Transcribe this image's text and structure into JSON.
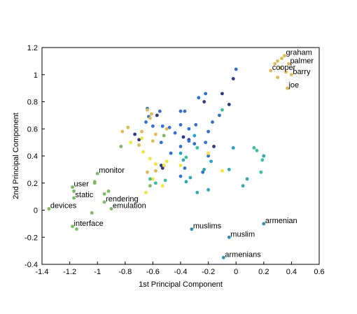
{
  "chart_data": {
    "type": "scatter",
    "title": "",
    "xlabel": "1st Principal Component",
    "ylabel": "2nd Principal Component",
    "xlim": [
      -1.4,
      0.6
    ],
    "ylim": [
      -0.4,
      1.2
    ],
    "xticks": [
      "-1.4",
      "-1.2",
      "-1",
      "-0.8",
      "-0.6",
      "-0.4",
      "-0.2",
      "0",
      "0.2",
      "0.4",
      "0.6"
    ],
    "yticks": [
      "-0.4",
      "-0.2",
      "0",
      "0.2",
      "0.4",
      "0.6",
      "0.8",
      "1",
      "1.2"
    ],
    "grid": false,
    "colors": {
      "green": "#7bba5e",
      "gold": "#e0ba4a",
      "yellow": "#f5e62a",
      "blue": "#2f6fd6",
      "navy": "#2d3a8c",
      "teal": "#29a8b6",
      "cyan": "#1ea4cf",
      "mint": "#35c0a0",
      "steel": "#2b8fb8"
    },
    "labeled_points": [
      {
        "label": "graham",
        "x": 0.35,
        "y": 1.14,
        "color": "gold"
      },
      {
        "label": "palmer",
        "x": 0.38,
        "y": 1.08,
        "color": "gold"
      },
      {
        "label": "cooper",
        "x": 0.25,
        "y": 1.03,
        "color": "gold"
      },
      {
        "label": "barry",
        "x": 0.4,
        "y": 1.0,
        "color": "gold"
      },
      {
        "label": "joe",
        "x": 0.37,
        "y": 0.9,
        "color": "gold"
      },
      {
        "label": "monitor",
        "x": -1.0,
        "y": 0.27,
        "color": "green"
      },
      {
        "label": "user",
        "x": -1.18,
        "y": 0.17,
        "color": "green"
      },
      {
        "label": "static",
        "x": -1.17,
        "y": 0.09,
        "color": "green"
      },
      {
        "label": "rendering",
        "x": -0.95,
        "y": 0.06,
        "color": "green"
      },
      {
        "label": "devices",
        "x": -1.35,
        "y": 0.01,
        "color": "green"
      },
      {
        "label": "emulation",
        "x": -0.9,
        "y": 0.01,
        "color": "green"
      },
      {
        "label": "interface",
        "x": -1.18,
        "y": -0.12,
        "color": "green"
      },
      {
        "label": "armenian",
        "x": 0.2,
        "y": -0.1,
        "color": "steel"
      },
      {
        "label": "muslims",
        "x": -0.32,
        "y": -0.14,
        "color": "steel"
      },
      {
        "label": "muslim",
        "x": -0.05,
        "y": -0.2,
        "color": "steel"
      },
      {
        "label": "armenians",
        "x": -0.09,
        "y": -0.35,
        "color": "steel"
      }
    ],
    "points": [
      {
        "x": 0.3,
        "y": 1.1,
        "c": "gold"
      },
      {
        "x": 0.33,
        "y": 1.12,
        "c": "gold"
      },
      {
        "x": 0.32,
        "y": 1.05,
        "c": "gold"
      },
      {
        "x": 0.28,
        "y": 1.08,
        "c": "gold"
      },
      {
        "x": 0.36,
        "y": 1.02,
        "c": "gold"
      },
      {
        "x": 0.3,
        "y": 0.98,
        "c": "gold"
      },
      {
        "x": -1.17,
        "y": 0.14,
        "c": "green"
      },
      {
        "x": -1.02,
        "y": 0.21,
        "c": "green"
      },
      {
        "x": -1.02,
        "y": 0.2,
        "c": "green"
      },
      {
        "x": -0.92,
        "y": 0.14,
        "c": "green"
      },
      {
        "x": -0.95,
        "y": 0.12,
        "c": "green"
      },
      {
        "x": -1.04,
        "y": -0.02,
        "c": "green"
      },
      {
        "x": -1.15,
        "y": -0.14,
        "c": "green"
      },
      {
        "x": -0.62,
        "y": 0.18,
        "c": "green"
      },
      {
        "x": -0.83,
        "y": 0.47,
        "c": "green"
      },
      {
        "x": -0.52,
        "y": 0.55,
        "c": "green"
      },
      {
        "x": -0.02,
        "y": 0.97,
        "c": "navy"
      },
      {
        "x": -0.05,
        "y": 0.78,
        "c": "navy"
      },
      {
        "x": -0.1,
        "y": 0.86,
        "c": "navy"
      },
      {
        "x": -0.23,
        "y": 0.8,
        "c": "navy"
      },
      {
        "x": -0.57,
        "y": 0.7,
        "c": "navy"
      },
      {
        "x": -0.73,
        "y": 0.56,
        "c": "navy"
      },
      {
        "x": -0.7,
        "y": 0.52,
        "c": "navy"
      },
      {
        "x": -0.38,
        "y": 0.54,
        "c": "navy"
      },
      {
        "x": -0.34,
        "y": 0.52,
        "c": "navy"
      },
      {
        "x": -0.54,
        "y": 0.33,
        "c": "navy"
      },
      {
        "x": -0.53,
        "y": 0.31,
        "c": "navy"
      },
      {
        "x": -0.16,
        "y": 0.47,
        "c": "navy"
      },
      {
        "x": 0.0,
        "y": 1.04,
        "c": "blue"
      },
      {
        "x": -0.22,
        "y": 0.86,
        "c": "blue"
      },
      {
        "x": -0.27,
        "y": 0.83,
        "c": "blue"
      },
      {
        "x": -0.37,
        "y": 0.73,
        "c": "blue"
      },
      {
        "x": -0.4,
        "y": 0.73,
        "c": "blue"
      },
      {
        "x": -0.64,
        "y": 0.75,
        "c": "blue"
      },
      {
        "x": -0.55,
        "y": 0.73,
        "c": "blue"
      },
      {
        "x": -0.63,
        "y": 0.69,
        "c": "blue"
      },
      {
        "x": -0.65,
        "y": 0.65,
        "c": "blue"
      },
      {
        "x": -0.48,
        "y": 0.61,
        "c": "blue"
      },
      {
        "x": -0.4,
        "y": 0.63,
        "c": "blue"
      },
      {
        "x": -0.34,
        "y": 0.6,
        "c": "blue"
      },
      {
        "x": -0.44,
        "y": 0.57,
        "c": "blue"
      },
      {
        "x": -0.6,
        "y": 0.62,
        "c": "blue"
      },
      {
        "x": -0.53,
        "y": 0.62,
        "c": "blue"
      },
      {
        "x": -0.29,
        "y": 0.63,
        "c": "blue"
      },
      {
        "x": -0.17,
        "y": 0.65,
        "c": "blue"
      },
      {
        "x": -0.12,
        "y": 0.7,
        "c": "blue"
      },
      {
        "x": -0.2,
        "y": 0.58,
        "c": "blue"
      },
      {
        "x": -0.34,
        "y": 0.51,
        "c": "blue"
      },
      {
        "x": -0.22,
        "y": 0.5,
        "c": "blue"
      },
      {
        "x": -0.3,
        "y": 0.49,
        "c": "blue"
      },
      {
        "x": -0.4,
        "y": 0.47,
        "c": "blue"
      },
      {
        "x": -0.54,
        "y": 0.5,
        "c": "blue"
      },
      {
        "x": -0.47,
        "y": 0.42,
        "c": "blue"
      },
      {
        "x": -0.2,
        "y": 0.4,
        "c": "blue"
      },
      {
        "x": -0.52,
        "y": 0.33,
        "c": "blue"
      },
      {
        "x": -0.37,
        "y": 0.31,
        "c": "blue"
      },
      {
        "x": -0.4,
        "y": 0.25,
        "c": "blue"
      },
      {
        "x": -0.24,
        "y": 0.28,
        "c": "blue"
      },
      {
        "x": -0.64,
        "y": 0.74,
        "c": "gold"
      },
      {
        "x": -0.61,
        "y": 0.71,
        "c": "gold"
      },
      {
        "x": -0.62,
        "y": 0.68,
        "c": "gold"
      },
      {
        "x": -0.78,
        "y": 0.61,
        "c": "gold"
      },
      {
        "x": -0.68,
        "y": 0.58,
        "c": "gold"
      },
      {
        "x": -0.82,
        "y": 0.58,
        "c": "gold"
      },
      {
        "x": -0.7,
        "y": 0.48,
        "c": "gold"
      },
      {
        "x": -0.58,
        "y": 0.56,
        "c": "gold"
      },
      {
        "x": -0.5,
        "y": 0.6,
        "c": "gold"
      },
      {
        "x": -0.6,
        "y": 0.51,
        "c": "gold"
      },
      {
        "x": -0.64,
        "y": 0.28,
        "c": "gold"
      },
      {
        "x": -0.58,
        "y": 0.29,
        "c": "gold"
      },
      {
        "x": -0.68,
        "y": 0.53,
        "c": "yellow"
      },
      {
        "x": -0.67,
        "y": 0.43,
        "c": "yellow"
      },
      {
        "x": -0.76,
        "y": 0.5,
        "c": "yellow"
      },
      {
        "x": -0.62,
        "y": 0.38,
        "c": "yellow"
      },
      {
        "x": -0.58,
        "y": 0.34,
        "c": "yellow"
      },
      {
        "x": -0.52,
        "y": 0.33,
        "c": "yellow"
      },
      {
        "x": -0.6,
        "y": 0.23,
        "c": "yellow"
      },
      {
        "x": -0.65,
        "y": 0.13,
        "c": "yellow"
      },
      {
        "x": -0.53,
        "y": 0.18,
        "c": "yellow"
      },
      {
        "x": -0.5,
        "y": 0.36,
        "c": "yellow"
      },
      {
        "x": -0.4,
        "y": 0.33,
        "c": "yellow"
      },
      {
        "x": -0.2,
        "y": 0.42,
        "c": "yellow"
      },
      {
        "x": -0.1,
        "y": 0.29,
        "c": "yellow"
      },
      {
        "x": -0.51,
        "y": 0.22,
        "c": "mint"
      },
      {
        "x": -0.58,
        "y": 0.2,
        "c": "mint"
      },
      {
        "x": -0.62,
        "y": 0.23,
        "c": "mint"
      },
      {
        "x": -0.36,
        "y": 0.39,
        "c": "mint"
      },
      {
        "x": -0.28,
        "y": 0.46,
        "c": "mint"
      },
      {
        "x": -0.1,
        "y": 0.74,
        "c": "mint"
      },
      {
        "x": 0.13,
        "y": 0.46,
        "c": "mint"
      },
      {
        "x": 0.15,
        "y": 0.44,
        "c": "mint"
      },
      {
        "x": 0.19,
        "y": 0.37,
        "c": "mint"
      },
      {
        "x": 0.18,
        "y": 0.28,
        "c": "mint"
      },
      {
        "x": -0.36,
        "y": 0.21,
        "c": "teal"
      },
      {
        "x": -0.33,
        "y": 0.24,
        "c": "teal"
      },
      {
        "x": -0.28,
        "y": 0.13,
        "c": "teal"
      },
      {
        "x": -0.2,
        "y": 0.15,
        "c": "teal"
      },
      {
        "x": -0.23,
        "y": 0.3,
        "c": "teal"
      },
      {
        "x": 0.05,
        "y": 0.18,
        "c": "teal"
      },
      {
        "x": 0.08,
        "y": 0.23,
        "c": "teal"
      },
      {
        "x": 0.2,
        "y": 0.4,
        "c": "teal"
      },
      {
        "x": -0.38,
        "y": 0.37,
        "c": "teal"
      },
      {
        "x": -0.05,
        "y": 0.3,
        "c": "teal"
      },
      {
        "x": -0.3,
        "y": 0.55,
        "c": "cyan"
      },
      {
        "x": -0.02,
        "y": 0.46,
        "c": "cyan"
      },
      {
        "x": -0.18,
        "y": 0.36,
        "c": "cyan"
      },
      {
        "x": -0.4,
        "y": 0.42,
        "c": "cyan"
      }
    ]
  }
}
